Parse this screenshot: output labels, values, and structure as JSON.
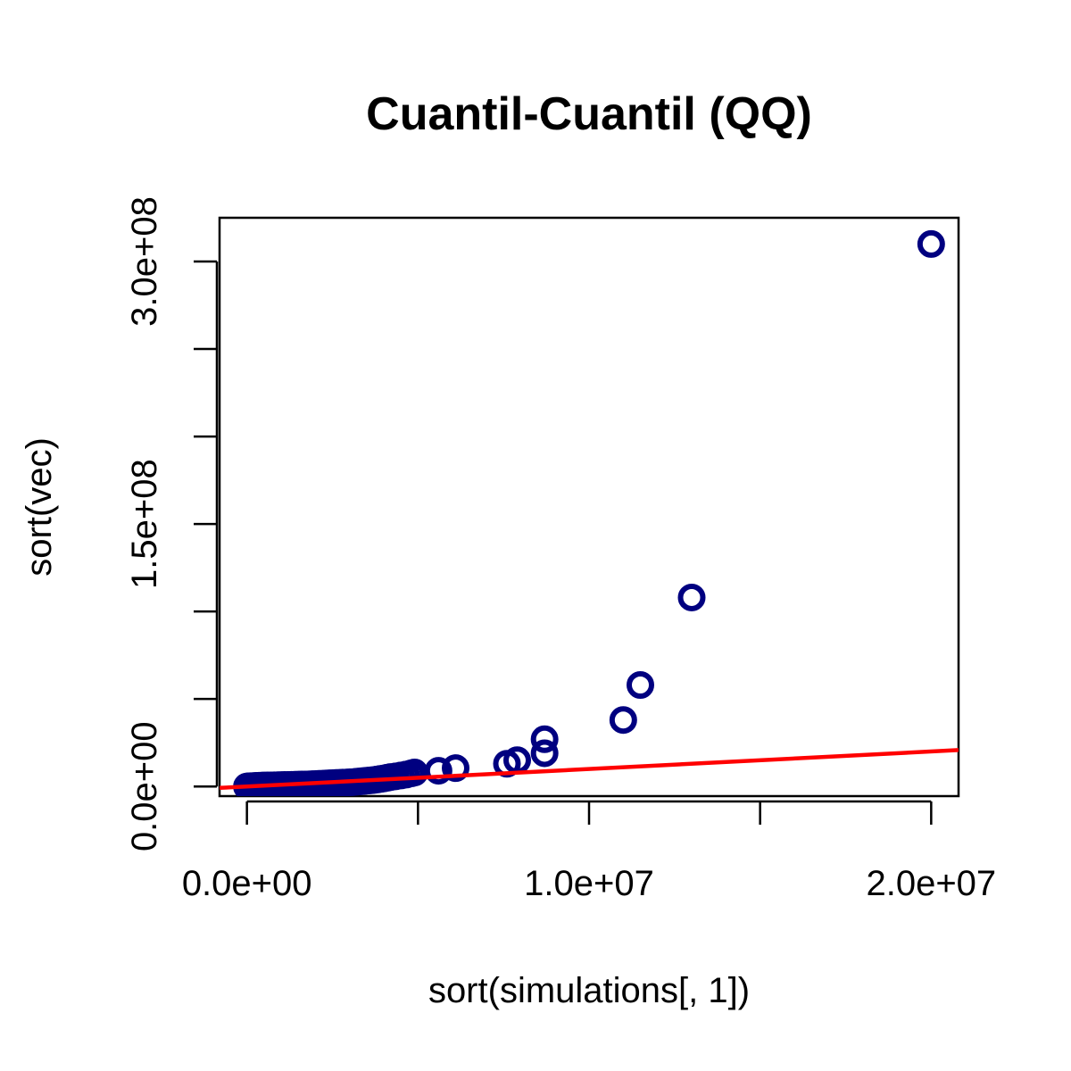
{
  "chart_data": {
    "type": "scatter",
    "title": "Cuantil-Cuantil (QQ)",
    "xlabel": "sort(simulations[, 1])",
    "ylabel": "sort(vec)",
    "xlim": [
      -800000,
      20800000
    ],
    "ylim": [
      -5500000,
      325000000
    ],
    "x_ticks": [
      0,
      5000000,
      10000000,
      15000000,
      20000000
    ],
    "x_tick_labels": [
      {
        "value": 0,
        "label": "0.0e+00"
      },
      {
        "value": 10000000,
        "label": "1.0e+07"
      },
      {
        "value": 20000000,
        "label": "2.0e+07"
      }
    ],
    "y_ticks": [
      0,
      50000000,
      100000000,
      150000000,
      200000000,
      250000000,
      300000000
    ],
    "y_tick_labels": [
      {
        "value": 0,
        "label": "0.0e+00"
      },
      {
        "value": 150000000,
        "label": "1.5e+08"
      },
      {
        "value": 300000000,
        "label": "3.0e+08"
      }
    ],
    "grid": false,
    "point_color": "#000080",
    "line_color": "#ff0000",
    "reference_line": {
      "x": [
        -800000,
        20800000
      ],
      "y": [
        -800000,
        20800000
      ]
    },
    "points": [
      {
        "x": 0,
        "y": 0
      },
      {
        "x": 50000,
        "y": 100000
      },
      {
        "x": 100000,
        "y": 150000
      },
      {
        "x": 150000,
        "y": 200000
      },
      {
        "x": 200000,
        "y": 250000
      },
      {
        "x": 250000,
        "y": 300000
      },
      {
        "x": 300000,
        "y": 350000
      },
      {
        "x": 350000,
        "y": 400000
      },
      {
        "x": 400000,
        "y": 450000
      },
      {
        "x": 450000,
        "y": 500000
      },
      {
        "x": 500000,
        "y": 550000
      },
      {
        "x": 600000,
        "y": 600000
      },
      {
        "x": 700000,
        "y": 650000
      },
      {
        "x": 800000,
        "y": 700000
      },
      {
        "x": 900000,
        "y": 750000
      },
      {
        "x": 1000000,
        "y": 800000
      },
      {
        "x": 1100000,
        "y": 850000
      },
      {
        "x": 1200000,
        "y": 900000
      },
      {
        "x": 1300000,
        "y": 950000
      },
      {
        "x": 1400000,
        "y": 1000000
      },
      {
        "x": 1500000,
        "y": 1050000
      },
      {
        "x": 1600000,
        "y": 1100000
      },
      {
        "x": 1700000,
        "y": 1150000
      },
      {
        "x": 1800000,
        "y": 1200000
      },
      {
        "x": 1900000,
        "y": 1300000
      },
      {
        "x": 2000000,
        "y": 1400000
      },
      {
        "x": 2100000,
        "y": 1500000
      },
      {
        "x": 2200000,
        "y": 1600000
      },
      {
        "x": 2300000,
        "y": 1700000
      },
      {
        "x": 2400000,
        "y": 1800000
      },
      {
        "x": 2500000,
        "y": 1900000
      },
      {
        "x": 2600000,
        "y": 2000000
      },
      {
        "x": 2700000,
        "y": 2100000
      },
      {
        "x": 2800000,
        "y": 2200000
      },
      {
        "x": 2900000,
        "y": 2300000
      },
      {
        "x": 3000000,
        "y": 2400000
      },
      {
        "x": 3100000,
        "y": 2500000
      },
      {
        "x": 3200000,
        "y": 2700000
      },
      {
        "x": 3300000,
        "y": 2900000
      },
      {
        "x": 3400000,
        "y": 3100000
      },
      {
        "x": 3500000,
        "y": 3300000
      },
      {
        "x": 3600000,
        "y": 3500000
      },
      {
        "x": 3700000,
        "y": 3700000
      },
      {
        "x": 3800000,
        "y": 4000000
      },
      {
        "x": 3900000,
        "y": 4300000
      },
      {
        "x": 4000000,
        "y": 4600000
      },
      {
        "x": 4100000,
        "y": 5000000
      },
      {
        "x": 4200000,
        "y": 5400000
      },
      {
        "x": 4350000,
        "y": 5800000
      },
      {
        "x": 4500000,
        "y": 6300000
      },
      {
        "x": 4650000,
        "y": 6800000
      },
      {
        "x": 4800000,
        "y": 7500000
      },
      {
        "x": 4900000,
        "y": 8000000
      },
      {
        "x": 5600000,
        "y": 9000000
      },
      {
        "x": 6100000,
        "y": 10500000
      },
      {
        "x": 7600000,
        "y": 13000000
      },
      {
        "x": 7900000,
        "y": 15000000
      },
      {
        "x": 8700000,
        "y": 19000000
      },
      {
        "x": 8700000,
        "y": 27000000
      },
      {
        "x": 11000000,
        "y": 38000000
      },
      {
        "x": 11500000,
        "y": 58000000
      },
      {
        "x": 13000000,
        "y": 108000000
      },
      {
        "x": 20000000,
        "y": 310000000
      }
    ]
  }
}
